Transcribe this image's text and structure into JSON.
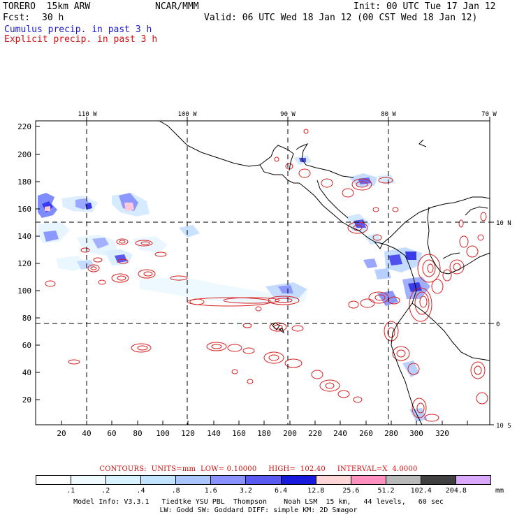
{
  "header": {
    "model_name": "TORERO  15km ARW",
    "org": "NCAR/MMM",
    "init": "Init: 00 UTC Tue 17 Jan 12",
    "fcst_label": "Fcst:",
    "fcst_value": "30 h",
    "valid": "Valid: 06 UTC Wed 18 Jan 12 (00 CST Wed 18 Jan 12)",
    "legend_cumulus": "Cumulus precip. in past 3 h",
    "legend_explicit": "Explicit precip. in past 3 h"
  },
  "map": {
    "top_lon_labels": [
      "110 W",
      "100 W",
      "90 W",
      "80 W",
      "70 W"
    ],
    "right_lat_labels": [
      "10 N",
      "0",
      "10 S"
    ],
    "y_ticks": [
      "220",
      "200",
      "180",
      "160",
      "140",
      "120",
      "100",
      "80",
      "60",
      "40",
      "20"
    ],
    "x_ticks": [
      "20",
      "40",
      "60",
      "80",
      "100",
      "120",
      "140",
      "160",
      "180",
      "200",
      "220",
      "240",
      "260",
      "280",
      "300",
      "320"
    ]
  },
  "contour_caption": "CONTOURS:  UNITS=mm  LOW= 0.10000     HIGH=  102.40     INTERVAL=X  4.0000",
  "colorbar": {
    "unit": "mm",
    "ticks": [
      ".1",
      ".2",
      ".4",
      ".8",
      "1.6",
      "3.2",
      "6.4",
      "12.8",
      "25.6",
      "51.2",
      "102.4",
      "204.8"
    ],
    "colors": [
      "#ffffff",
      "#eefaff",
      "#d8f2ff",
      "#c2e4ff",
      "#a9c4ff",
      "#8b92ff",
      "#5a5af0",
      "#1a1adc",
      "#ffd6d6",
      "#ff90c0",
      "#b8b8b8",
      "#404040",
      "#d9a8ff"
    ]
  },
  "footer": {
    "line1": "Model Info: V3.3.1   Tiedtke YSU PBL  Thompson    Noah LSM  15 km,   44 levels,   60 sec",
    "line2": "LW: Godd SW: Goddard DIFF: simple KM: 2D Smagor"
  }
}
